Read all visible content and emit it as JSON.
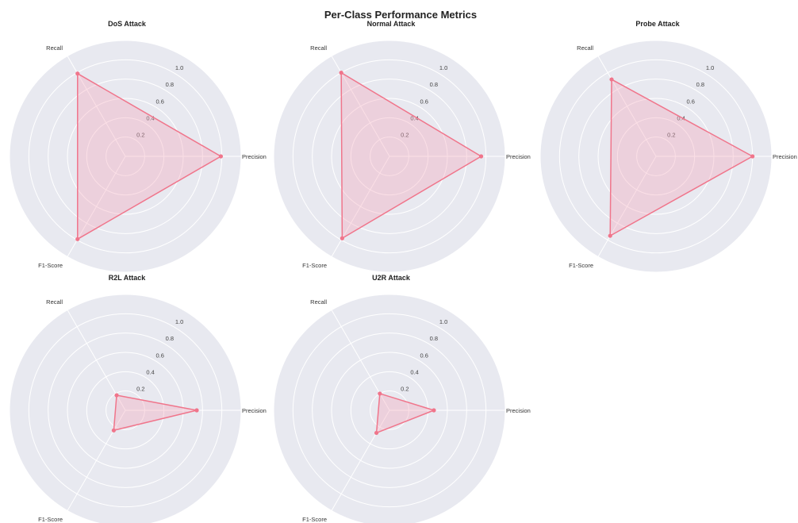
{
  "figure": {
    "title": "Per-Class Performance Metrics"
  },
  "colors": {
    "series": "#f0758b",
    "fill": "#f4a3b6",
    "panel_background": "#e8e9f0",
    "grid": "#ffffff"
  },
  "chart_data": [
    {
      "type": "radar",
      "title": "DoS Attack",
      "axes": [
        "Precision",
        "Recall",
        "F1-Score"
      ],
      "values": [
        0.99,
        0.99,
        0.99
      ],
      "rticks": [
        "0.2",
        "0.4",
        "0.6",
        "0.8",
        "1.0"
      ],
      "rlim": [
        0,
        1.2
      ],
      "grid": true
    },
    {
      "type": "radar",
      "title": "Normal Attack",
      "axes": [
        "Precision",
        "Recall",
        "F1-Score"
      ],
      "values": [
        0.95,
        1.0,
        0.98
      ],
      "rticks": [
        "0.2",
        "0.4",
        "0.6",
        "0.8",
        "1.0"
      ],
      "rlim": [
        0,
        1.2
      ],
      "grid": true
    },
    {
      "type": "radar",
      "title": "Probe Attack",
      "axes": [
        "Precision",
        "Recall",
        "F1-Score"
      ],
      "values": [
        1.0,
        0.92,
        0.95
      ],
      "rticks": [
        "0.2",
        "0.4",
        "0.6",
        "0.8",
        "1.0"
      ],
      "rlim": [
        0,
        1.2
      ],
      "grid": true
    },
    {
      "type": "radar",
      "title": "R2L Attack",
      "axes": [
        "Precision",
        "Recall",
        "F1-Score"
      ],
      "values": [
        0.74,
        0.18,
        0.24
      ],
      "rticks": [
        "0.2",
        "0.4",
        "0.6",
        "0.8",
        "1.0"
      ],
      "rlim": [
        0,
        1.2
      ],
      "grid": true
    },
    {
      "type": "radar",
      "title": "U2R Attack",
      "axes": [
        "Precision",
        "Recall",
        "F1-Score"
      ],
      "values": [
        0.46,
        0.2,
        0.27
      ],
      "rticks": [
        "0.2",
        "0.4",
        "0.6",
        "0.8",
        "1.0"
      ],
      "rlim": [
        0,
        1.2
      ],
      "grid": true
    }
  ]
}
